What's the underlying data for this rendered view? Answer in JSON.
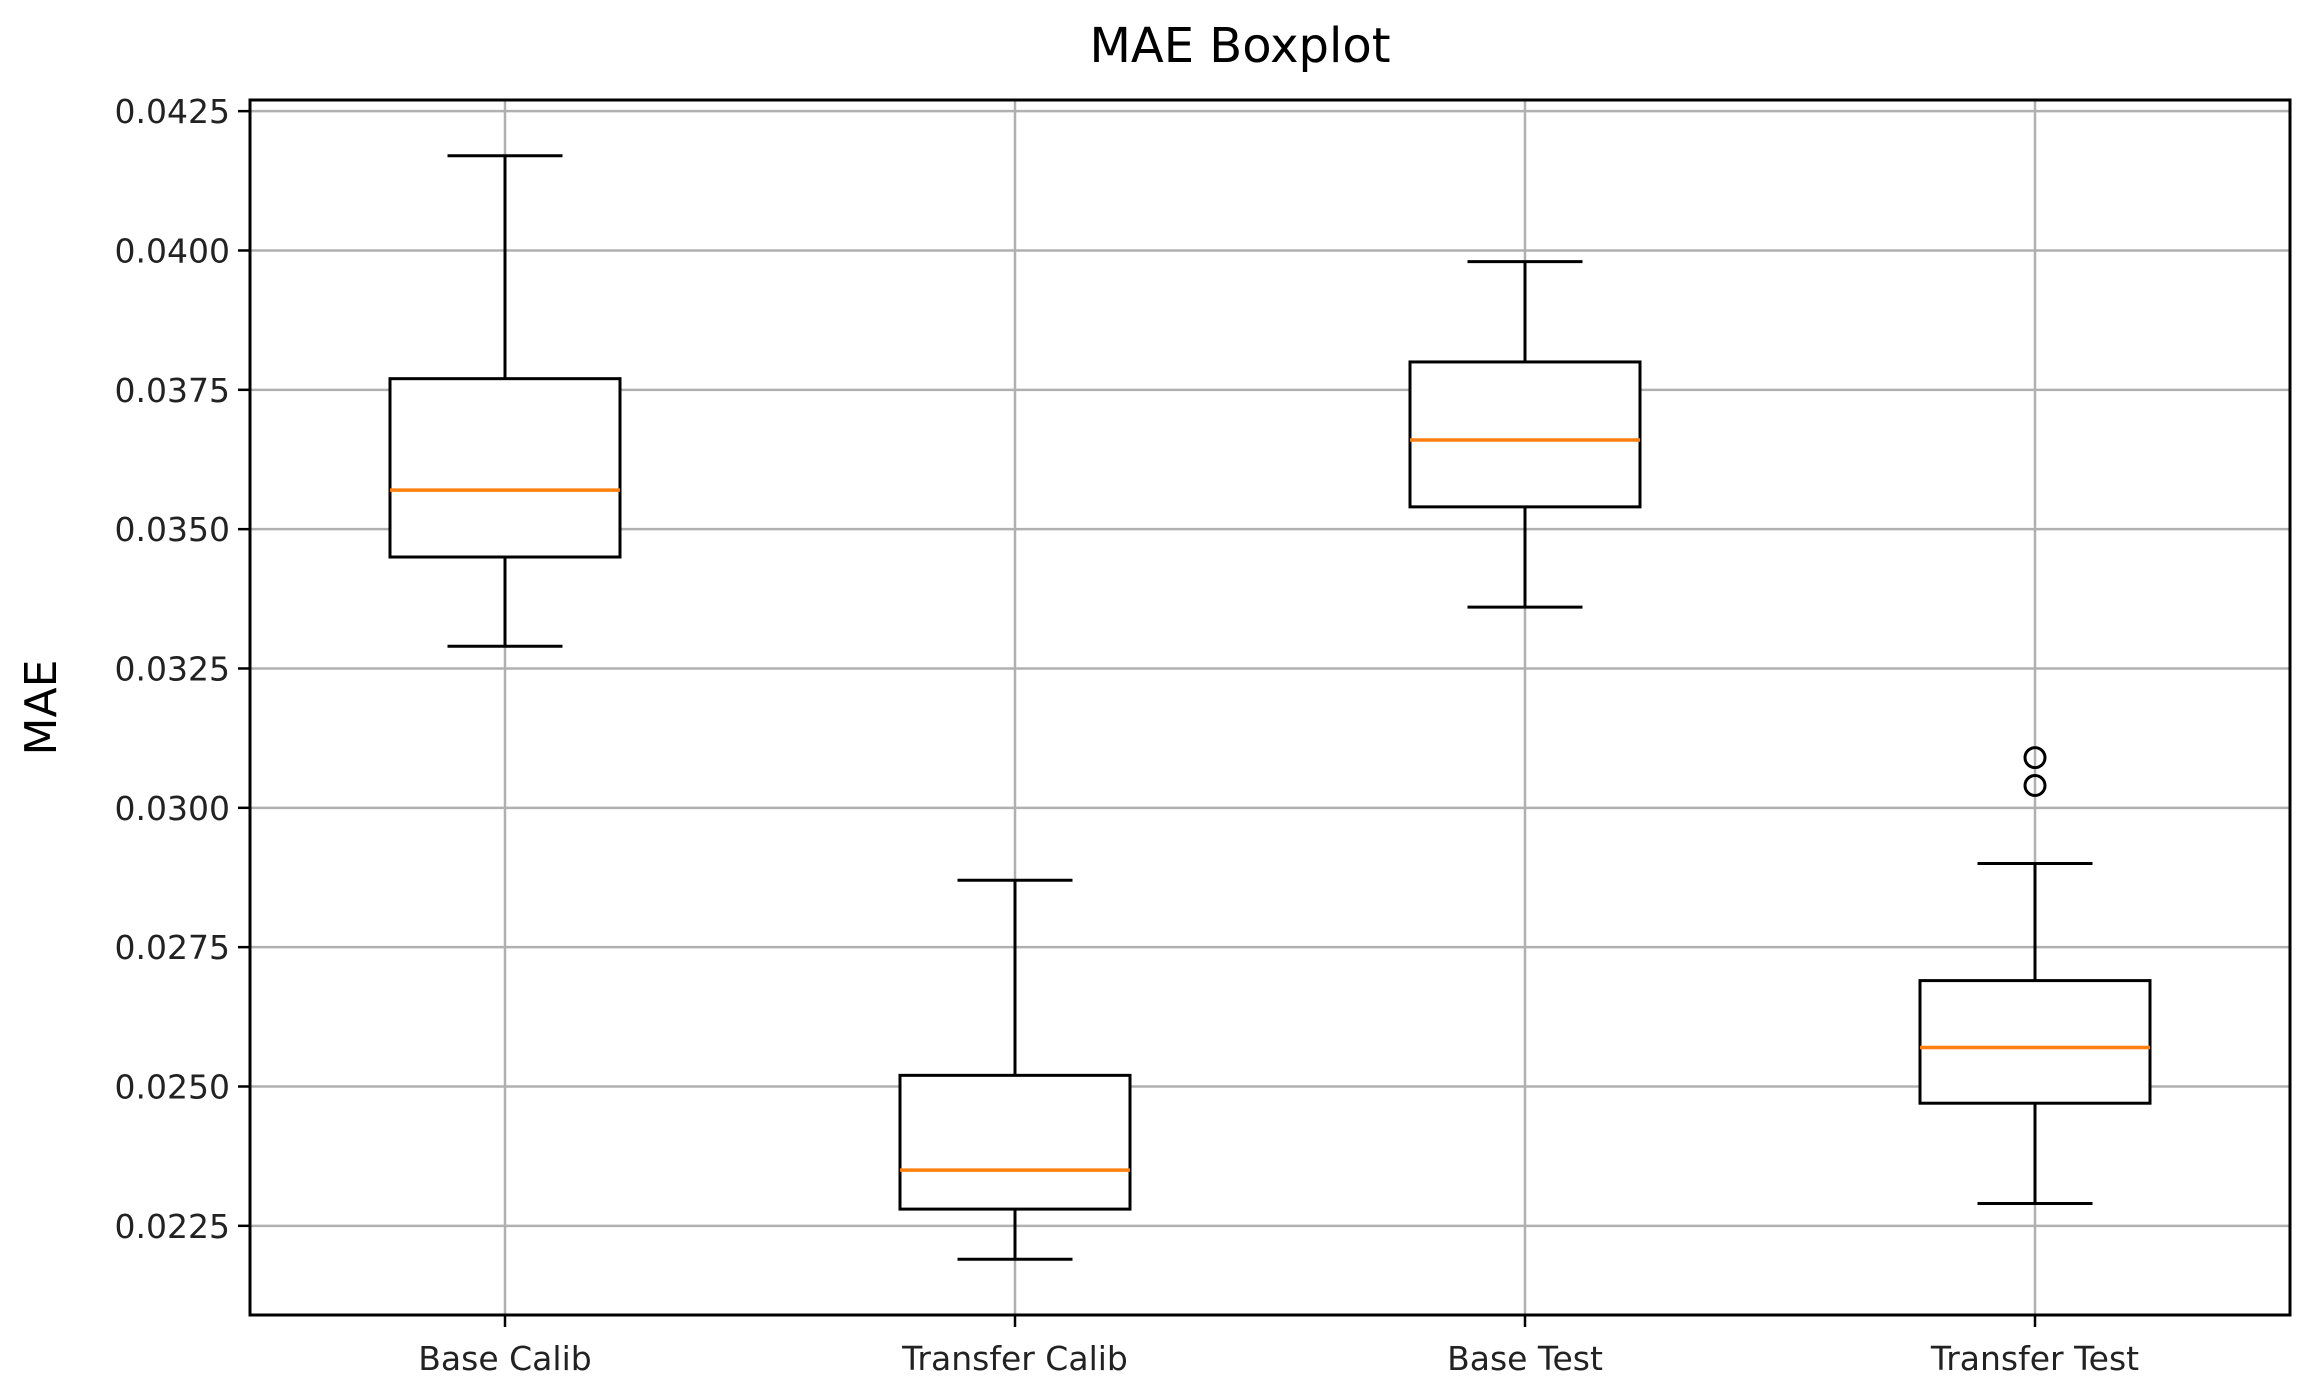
{
  "chart_data": {
    "type": "boxplot",
    "title": "MAE Boxplot",
    "xlabel": "",
    "ylabel": "MAE",
    "ylim": [
      0.0209,
      0.0427
    ],
    "yticks": [
      0.0225,
      0.025,
      0.0275,
      0.03,
      0.0325,
      0.035,
      0.0375,
      0.04,
      0.0425
    ],
    "ytick_labels": [
      "0.0225",
      "0.0250",
      "0.0275",
      "0.0300",
      "0.0325",
      "0.0350",
      "0.0375",
      "0.0400",
      "0.0425"
    ],
    "grid": true,
    "categories": [
      "Base Calib",
      "Transfer Calib",
      "Base Test",
      "Transfer Test"
    ],
    "boxes": [
      {
        "label": "Base Calib",
        "whisker_low": 0.0329,
        "q1": 0.0345,
        "median": 0.0357,
        "q3": 0.0377,
        "whisker_high": 0.0417,
        "outliers": []
      },
      {
        "label": "Transfer Calib",
        "whisker_low": 0.0219,
        "q1": 0.0228,
        "median": 0.0235,
        "q3": 0.0252,
        "whisker_high": 0.0287,
        "outliers": []
      },
      {
        "label": "Base Test",
        "whisker_low": 0.0336,
        "q1": 0.0354,
        "median": 0.0366,
        "q3": 0.038,
        "whisker_high": 0.0398,
        "outliers": []
      },
      {
        "label": "Transfer Test",
        "whisker_low": 0.0229,
        "q1": 0.0247,
        "median": 0.0257,
        "q3": 0.0269,
        "whisker_high": 0.029,
        "outliers": [
          0.0304,
          0.0309
        ]
      }
    ],
    "colors": {
      "box": "#000000",
      "median": "#ff7f0e",
      "grid": "#b0b0b0",
      "outlier": "#000000"
    }
  }
}
